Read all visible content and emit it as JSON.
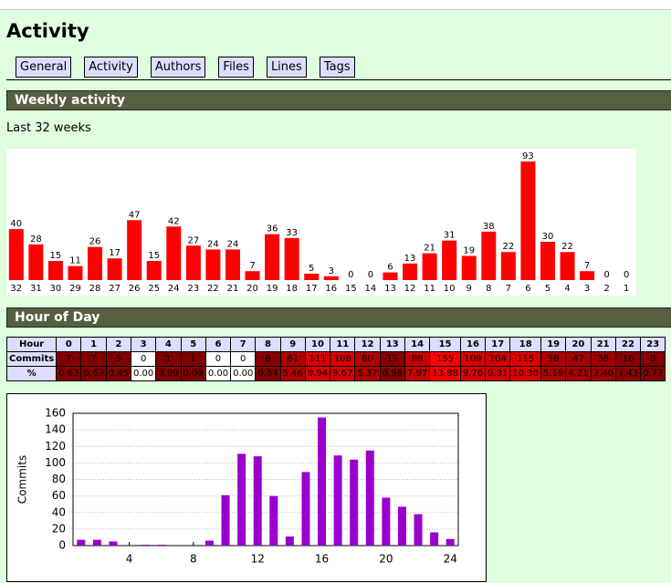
{
  "header": {
    "title": "Activity"
  },
  "nav": [
    "General",
    "Activity",
    "Authors",
    "Files",
    "Lines",
    "Tags"
  ],
  "sections": [
    {
      "title": "Weekly activity",
      "caption": "Last 32 weeks"
    },
    {
      "title": "Hour of Day"
    }
  ],
  "hour_table": {
    "row_headers": [
      "Hour",
      "Commits",
      "%"
    ],
    "hours": [
      0,
      1,
      2,
      3,
      4,
      5,
      6,
      7,
      8,
      9,
      10,
      11,
      12,
      13,
      14,
      15,
      16,
      17,
      18,
      19,
      20,
      21,
      22,
      23
    ],
    "commits": [
      7,
      7,
      5,
      0,
      1,
      1,
      0,
      0,
      6,
      61,
      111,
      108,
      60,
      11,
      89,
      155,
      109,
      104,
      115,
      58,
      47,
      38,
      16,
      8
    ],
    "percent": [
      "0.63",
      "0.63",
      "0.45",
      "0.00",
      "0.09",
      "0.09",
      "0.00",
      "0.00",
      "0.54",
      "5.46",
      "9.94",
      "9.67",
      "5.37",
      "0.98",
      "7.97",
      "13.88",
      "9.76",
      "9.31",
      "10.30",
      "5.19",
      "4.21",
      "3.40",
      "1.43",
      "0.72"
    ]
  },
  "chart_data": [
    {
      "type": "bar",
      "color": "#ff0000",
      "categories": [
        "32",
        "31",
        "30",
        "29",
        "28",
        "27",
        "26",
        "25",
        "24",
        "23",
        "22",
        "21",
        "20",
        "19",
        "18",
        "17",
        "16",
        "15",
        "14",
        "13",
        "12",
        "11",
        "10",
        "9",
        "8",
        "7",
        "6",
        "5",
        "4",
        "3",
        "2",
        "1"
      ],
      "values": [
        40,
        28,
        15,
        11,
        26,
        17,
        47,
        15,
        42,
        27,
        24,
        24,
        7,
        36,
        33,
        5,
        3,
        0,
        0,
        6,
        13,
        21,
        31,
        19,
        38,
        22,
        93,
        30,
        22,
        7,
        0,
        0
      ]
    },
    {
      "type": "bar",
      "color": "#9900cc",
      "ylabel": "Commits",
      "grid": true,
      "x": [
        1,
        2,
        3,
        4,
        5,
        6,
        7,
        8,
        9,
        10,
        11,
        12,
        13,
        14,
        15,
        16,
        17,
        18,
        19,
        20,
        21,
        22,
        23,
        24
      ],
      "values": [
        7,
        7,
        5,
        0,
        1,
        1,
        0,
        0,
        6,
        61,
        111,
        108,
        60,
        11,
        89,
        155,
        109,
        104,
        115,
        58,
        47,
        38,
        16,
        8
      ],
      "xlim": [
        0.5,
        24.5
      ],
      "xticks": [
        4,
        8,
        12,
        16,
        20,
        24
      ],
      "ylim": [
        0,
        160
      ],
      "yticks": [
        0,
        20,
        40,
        60,
        80,
        100,
        120,
        140,
        160
      ]
    }
  ]
}
